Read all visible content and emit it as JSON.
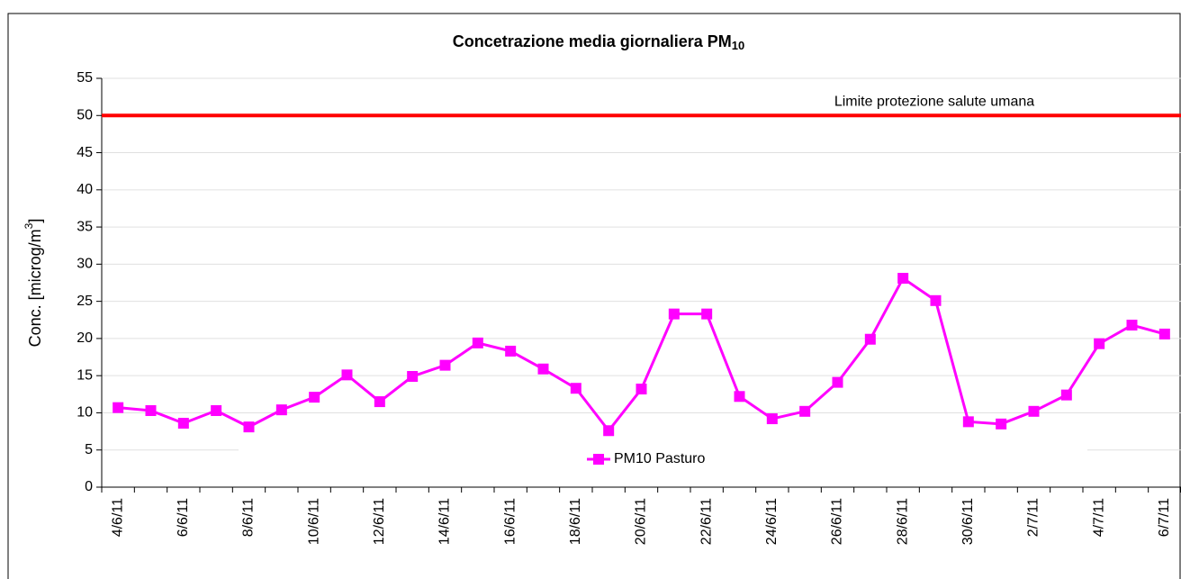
{
  "chart_data": {
    "type": "line",
    "title": "Concetrazione media giornaliera PM",
    "title_subscript": "10",
    "y_label": "Conc. [microg/m",
    "y_label_superscript": "3",
    "y_label_end": "]",
    "categories": [
      "4/6/11",
      null,
      "6/6/11",
      null,
      "8/6/11",
      null,
      "10/6/11",
      null,
      "12/6/11",
      null,
      "14/6/11",
      null,
      "16/6/11",
      null,
      "18/6/11",
      null,
      "20/6/11",
      null,
      "22/6/11",
      null,
      "24/6/11",
      null,
      "26/6/11",
      null,
      "28/6/11",
      null,
      "30/6/11",
      null,
      "2/7/11",
      null,
      "4/7/11",
      null,
      "6/7/11"
    ],
    "series": [
      {
        "name": "PM10 Pasturo",
        "color": "#ff00ff",
        "values": [
          10.7,
          10.3,
          8.6,
          10.3,
          8.1,
          10.4,
          12.1,
          15.1,
          11.5,
          14.9,
          16.4,
          19.4,
          18.3,
          15.9,
          13.3,
          7.6,
          13.2,
          23.3,
          23.3,
          12.2,
          9.2,
          10.2,
          14.1,
          19.9,
          28.1,
          25.1,
          8.8,
          8.5,
          10.2,
          12.4,
          19.3,
          21.8,
          20.6
        ]
      }
    ],
    "limit": {
      "value": 50,
      "label": "Limite protezione salute umana",
      "color": "#ff0000"
    },
    "ylim": [
      0,
      55
    ],
    "yticks": [
      0,
      5,
      10,
      15,
      20,
      25,
      30,
      35,
      40,
      45,
      50,
      55
    ],
    "grid": true,
    "legend": "bottom"
  }
}
